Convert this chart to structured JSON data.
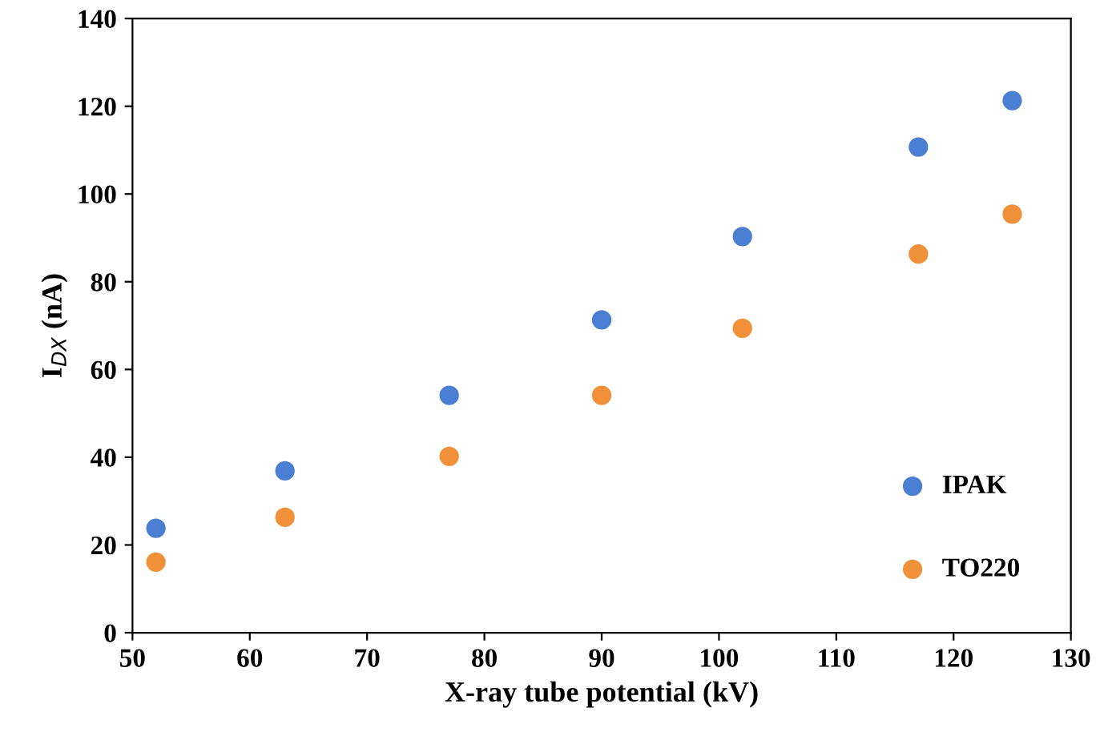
{
  "chart_data": {
    "type": "scatter",
    "xlabel": "X-ray tube potential (kV)",
    "ylabel": "I$_{DX}$ (nA)",
    "x": [
      52,
      63,
      77,
      90,
      102,
      117,
      125
    ],
    "series": [
      {
        "name": "IPAK",
        "color": "#4a7fd3",
        "values": [
          23.8,
          36.9,
          54.1,
          71.3,
          90.3,
          110.7,
          121.3
        ]
      },
      {
        "name": "TO220",
        "color": "#f0913a",
        "values": [
          16.1,
          26.3,
          40.2,
          54.1,
          69.4,
          86.3,
          95.4
        ]
      }
    ],
    "xlim": [
      50,
      130
    ],
    "xticks": [
      50,
      60,
      70,
      80,
      90,
      100,
      110,
      120,
      130
    ],
    "ylim": [
      0,
      140
    ],
    "yticks": [
      0,
      20,
      40,
      60,
      80,
      100,
      120,
      140
    ],
    "grid": false,
    "legend": "bottom right",
    "marker": "circle"
  }
}
